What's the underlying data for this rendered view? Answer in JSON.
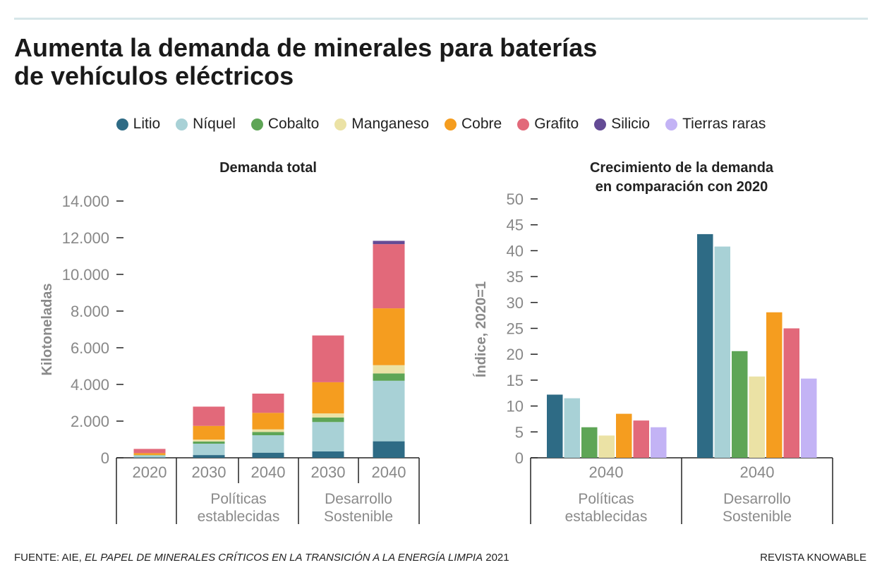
{
  "header": {
    "title_line1": "Aumenta la demanda de minerales para baterías",
    "title_line2": "de vehículos eléctricos"
  },
  "legend": [
    {
      "label": "Litio",
      "color": "#2e6b85"
    },
    {
      "label": "Níquel",
      "color": "#a8d1d6"
    },
    {
      "label": "Cobalto",
      "color": "#5ea556"
    },
    {
      "label": "Manganeso",
      "color": "#ebe2a5"
    },
    {
      "label": "Cobre",
      "color": "#f59d1f"
    },
    {
      "label": "Grafito",
      "color": "#e2697a"
    },
    {
      "label": "Silicio",
      "color": "#644b95"
    },
    {
      "label": "Tierras raras",
      "color": "#c3b3f5"
    }
  ],
  "chart_data": [
    {
      "type": "bar",
      "stacked": true,
      "title": "Demanda total",
      "ylabel": "Kilotoneladas",
      "ylim": [
        0,
        14000
      ],
      "yticks": [
        "0",
        "2.000",
        "4.000",
        "6.000",
        "8.000",
        "10.000",
        "12.000",
        "14.000"
      ],
      "categories": [
        "2020",
        "2030",
        "2040",
        "2030",
        "2040"
      ],
      "groups": [
        {
          "label": "",
          "categories": [
            "2020"
          ]
        },
        {
          "label_line1": "Políticas",
          "label_line2": "establecidas",
          "categories": [
            "2030",
            "2040"
          ]
        },
        {
          "label_line1": "Desarrollo",
          "label_line2": "Sostenible",
          "categories": [
            "2030",
            "2040"
          ]
        }
      ],
      "series": [
        {
          "name": "Litio",
          "values": [
            20,
            150,
            280,
            350,
            900
          ]
        },
        {
          "name": "Níquel",
          "values": [
            100,
            620,
            950,
            1600,
            3300
          ]
        },
        {
          "name": "Cobalto",
          "values": [
            20,
            120,
            180,
            250,
            400
          ]
        },
        {
          "name": "Manganeso",
          "values": [
            15,
            100,
            140,
            220,
            450
          ]
        },
        {
          "name": "Cobre",
          "values": [
            100,
            750,
            900,
            1700,
            3100
          ]
        },
        {
          "name": "Grafito",
          "values": [
            230,
            1050,
            1050,
            2550,
            3500
          ]
        },
        {
          "name": "Silicio",
          "values": [
            0,
            0,
            0,
            0,
            180
          ]
        }
      ],
      "grid": false
    },
    {
      "type": "bar",
      "title_line1": "Crecimiento de la demanda",
      "title_line2": "en comparación con 2020",
      "ylabel": "Índice, 2020=1",
      "ylim": [
        0,
        50
      ],
      "yticks": [
        "0",
        "5",
        "10",
        "15",
        "20",
        "25",
        "30",
        "35",
        "40",
        "45",
        "50"
      ],
      "categories": [
        "2040",
        "2040"
      ],
      "groups": [
        {
          "label_line1": "Políticas",
          "label_line2": "establecidas"
        },
        {
          "label_line1": "Desarrollo",
          "label_line2": "Sostenible"
        }
      ],
      "series": [
        {
          "name": "Litio",
          "values": [
            12.2,
            43.2
          ]
        },
        {
          "name": "Níquel",
          "values": [
            11.5,
            40.8
          ]
        },
        {
          "name": "Cobalto",
          "values": [
            5.9,
            20.6
          ]
        },
        {
          "name": "Manganeso",
          "values": [
            4.3,
            15.7
          ]
        },
        {
          "name": "Cobre",
          "values": [
            8.5,
            28.1
          ]
        },
        {
          "name": "Grafito",
          "values": [
            7.2,
            25.0
          ]
        },
        {
          "name": "Tierras raras",
          "values": [
            5.9,
            15.3
          ]
        }
      ],
      "grid": false
    }
  ],
  "footer": {
    "source_prefix": "FUENTE: AIE, ",
    "source_title": "EL PAPEL DE MINERALES CRÍTICOS EN LA TRANSICIÓN A LA ENERGÍA LIMPIA",
    "source_suffix": " 2021",
    "brand": "REVISTA KNOWABLE"
  }
}
